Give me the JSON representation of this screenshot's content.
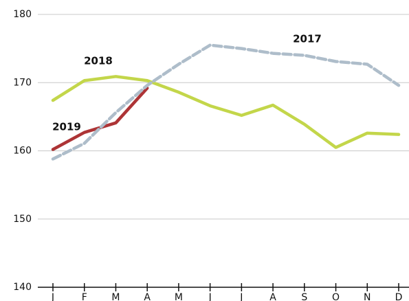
{
  "chart_data": {
    "type": "line",
    "categories": [
      "J",
      "F",
      "M",
      "A",
      "M",
      "J",
      "J",
      "A",
      "S",
      "O",
      "N",
      "D"
    ],
    "series": [
      {
        "name": "2018",
        "color": "#c3d64a",
        "dashed": false,
        "values": [
          167.4,
          170.3,
          170.9,
          170.3,
          168.6,
          166.6,
          165.2,
          166.7,
          163.9,
          160.5,
          162.6,
          162.4
        ]
      },
      {
        "name": "2019",
        "color": "#ad3436",
        "dashed": false,
        "values": [
          160.2,
          162.7,
          164.1,
          169.2,
          null,
          null,
          null,
          null,
          null,
          null,
          null,
          null
        ]
      },
      {
        "name": "2017",
        "color": "#aebdca",
        "dashed": true,
        "values": [
          158.8,
          161.1,
          165.6,
          169.6,
          172.7,
          175.5,
          175.0,
          174.3,
          174.0,
          173.1,
          172.7,
          169.6
        ]
      }
    ],
    "ylim": [
      140,
      180
    ],
    "yticks": [
      140,
      150,
      160,
      170,
      180
    ],
    "grid": true
  }
}
